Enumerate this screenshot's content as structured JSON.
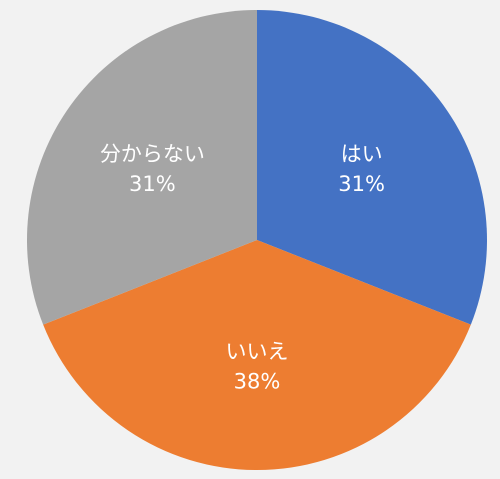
{
  "chart_data": {
    "type": "pie",
    "slices": [
      {
        "label": "はい",
        "value": 31,
        "percent_label": "31%",
        "color": "#4472c4"
      },
      {
        "label": "いいえ",
        "value": 38,
        "percent_label": "38%",
        "color": "#ed7d31"
      },
      {
        "label": "分からない",
        "value": 31,
        "percent_label": "31%",
        "color": "#a5a5a5"
      }
    ],
    "start_angle_deg": 0,
    "direction": "clockwise",
    "legend": "none",
    "title": ""
  }
}
